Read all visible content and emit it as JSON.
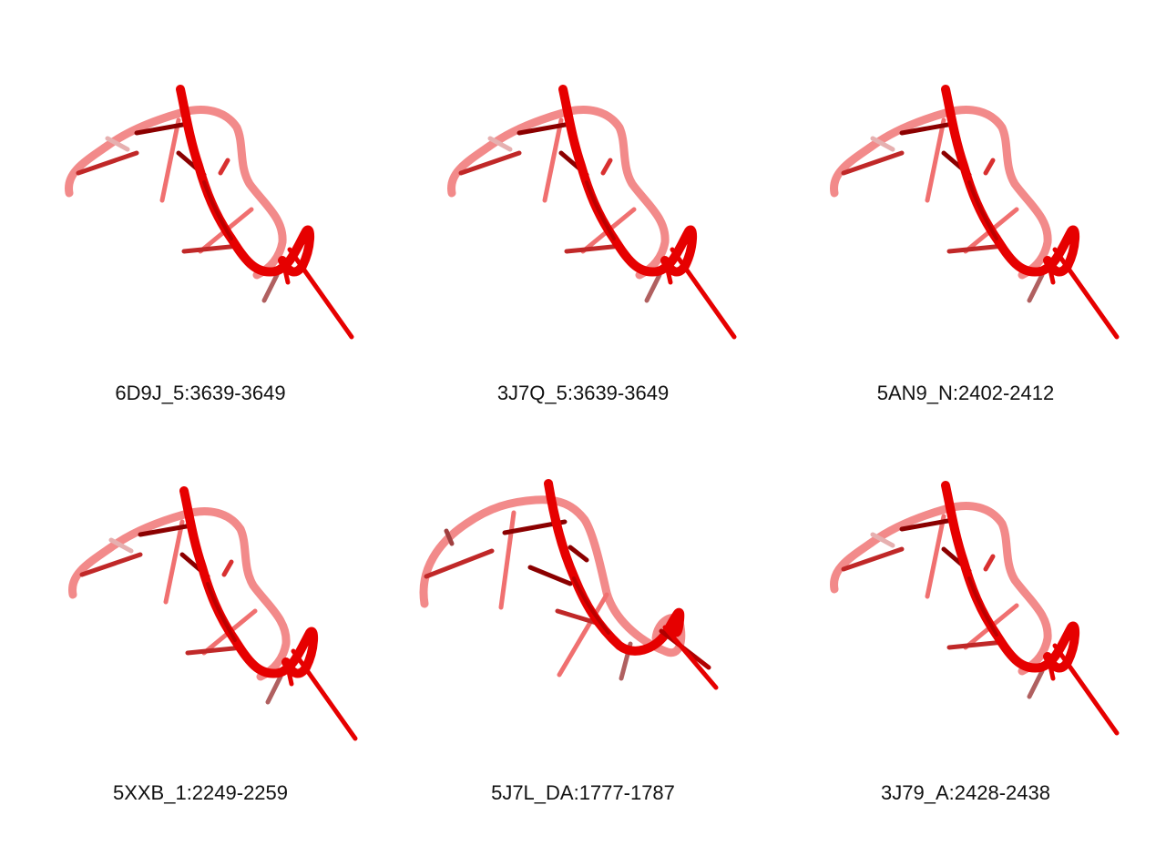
{
  "panels": [
    {
      "label": "6D9J_5:3639-3649",
      "variant": "a"
    },
    {
      "label": "3J7Q_5:3639-3649",
      "variant": "a"
    },
    {
      "label": "5AN9_N:2402-2412",
      "variant": "a"
    },
    {
      "label": "5XXB_1:2249-2259",
      "variant": "a"
    },
    {
      "label": "5J7L_DA:1777-1787",
      "variant": "b"
    },
    {
      "label": "3J79_A:2428-2438",
      "variant": "a"
    }
  ],
  "colors": {
    "backbone_front": "#e60000",
    "backbone_back": "#f28a8a",
    "base_dark": "#8b0000",
    "base_mid": "#d83030",
    "base_light": "#f07070"
  }
}
